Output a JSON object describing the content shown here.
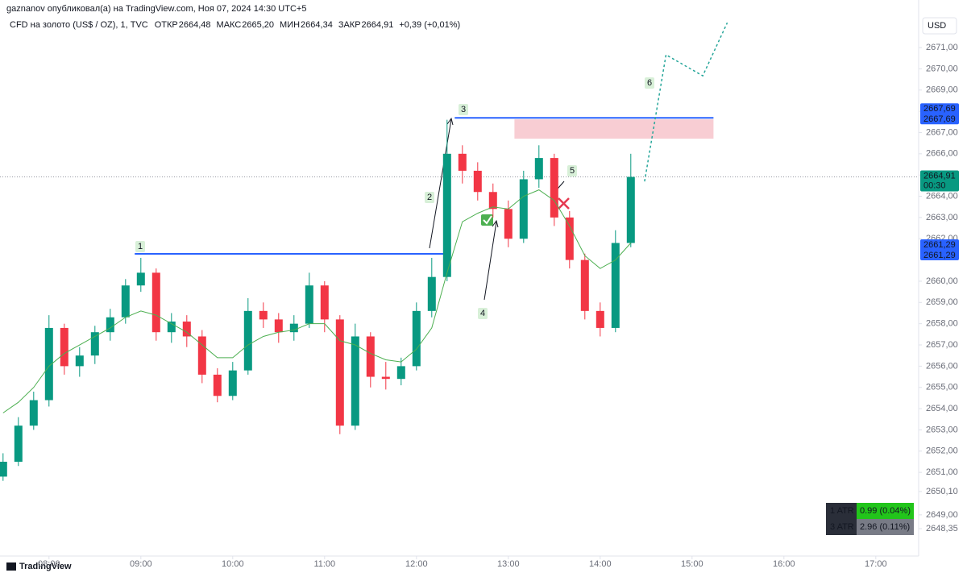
{
  "header": {
    "byline": "gaznanov опубликовал(а) на TradingView.com, Ноя 07, 2024 14:30 UTC+5",
    "symbol": "CFD на золото (US$ / OZ), 1, TVC",
    "ohlc": [
      {
        "name": "ОТКР",
        "value": 2664.48,
        "label": "2664,48"
      },
      {
        "name": "МАКС",
        "value": 2665.2,
        "label": "2665,20"
      },
      {
        "name": "МИН",
        "value": 2664.34,
        "label": "2664,34"
      },
      {
        "name": "ЗАКР",
        "value": 2664.91,
        "label": "2664,91"
      }
    ],
    "change": "+0,39 (+0,01%)"
  },
  "chart_data": {
    "type": "candlestick",
    "currency": "USD",
    "x": [
      450,
      460,
      470,
      480,
      490,
      500,
      510,
      520,
      530,
      540,
      550,
      560,
      570,
      580,
      590,
      600,
      610,
      620,
      630,
      640,
      650,
      660,
      670,
      680,
      690,
      700,
      710,
      720,
      730,
      740,
      750,
      760,
      770,
      780,
      790,
      800,
      810,
      820,
      830,
      840,
      850,
      860
    ],
    "open": [
      2650.8,
      2651.5,
      2653.2,
      2654.4,
      2657.8,
      2656.0,
      2656.5,
      2657.6,
      2658.3,
      2659.8,
      2660.4,
      2657.6,
      2658.1,
      2657.4,
      2655.6,
      2654.6,
      2655.8,
      2658.6,
      2658.2,
      2657.6,
      2658.0,
      2659.8,
      2658.2,
      2653.2,
      2657.4,
      2655.5,
      2655.4,
      2656.0,
      2658.6,
      2660.2,
      2666.0,
      2665.2,
      2664.2,
      2663.4,
      2662.0,
      2664.8,
      2665.8,
      2663.0,
      2661.0,
      2658.6,
      2657.8,
      2661.8
    ],
    "high": [
      2651.9,
      2653.6,
      2654.8,
      2658.4,
      2658.0,
      2656.9,
      2657.9,
      2658.7,
      2660.1,
      2661.1,
      2660.6,
      2658.5,
      2658.4,
      2657.7,
      2655.9,
      2656.2,
      2659.2,
      2659.0,
      2658.5,
      2658.4,
      2660.4,
      2660.0,
      2658.4,
      2658.0,
      2657.6,
      2656.2,
      2656.4,
      2659.0,
      2661.1,
      2667.6,
      2666.4,
      2665.6,
      2664.6,
      2663.8,
      2665.2,
      2666.4,
      2666.0,
      2663.3,
      2661.3,
      2659.0,
      2662.4,
      2666.0
    ],
    "low": [
      2650.6,
      2651.3,
      2653.0,
      2654.1,
      2655.6,
      2655.5,
      2656.1,
      2657.2,
      2658.0,
      2659.5,
      2657.2,
      2657.1,
      2656.9,
      2655.2,
      2654.3,
      2654.4,
      2655.6,
      2657.8,
      2657.1,
      2657.2,
      2657.8,
      2657.6,
      2652.8,
      2653.0,
      2655.0,
      2654.9,
      2655.1,
      2655.8,
      2658.3,
      2660.0,
      2664.6,
      2663.8,
      2663.0,
      2661.6,
      2661.8,
      2664.4,
      2662.6,
      2660.6,
      2658.2,
      2657.4,
      2657.6,
      2661.6
    ],
    "close": [
      2651.5,
      2653.2,
      2654.4,
      2657.8,
      2656.0,
      2656.5,
      2657.6,
      2658.3,
      2659.8,
      2660.4,
      2657.6,
      2658.1,
      2657.4,
      2655.6,
      2654.6,
      2655.8,
      2658.6,
      2658.2,
      2657.6,
      2658.0,
      2659.8,
      2658.2,
      2653.2,
      2657.4,
      2655.5,
      2655.4,
      2656.0,
      2658.6,
      2660.2,
      2666.0,
      2665.2,
      2664.2,
      2663.4,
      2662.0,
      2664.8,
      2665.8,
      2663.0,
      2661.0,
      2658.6,
      2657.8,
      2661.8,
      2664.91
    ],
    "up_color": "#089981",
    "down_color": "#f23645",
    "ma": {
      "color": "#4caf50",
      "values": [
        2653.8,
        2654.3,
        2655.0,
        2656.0,
        2656.6,
        2657.0,
        2657.4,
        2657.8,
        2658.3,
        2658.6,
        2658.4,
        2658.0,
        2657.6,
        2657.0,
        2656.4,
        2656.4,
        2657.0,
        2657.4,
        2657.6,
        2657.7,
        2658.0,
        2658.0,
        2657.2,
        2657.0,
        2656.6,
        2656.3,
        2656.2,
        2656.8,
        2657.8,
        2660.4,
        2662.8,
        2663.2,
        2663.5,
        2663.4,
        2664.0,
        2664.3,
        2663.8,
        2662.6,
        2661.2,
        2660.6,
        2661.0,
        2661.8
      ]
    },
    "xlim": [
      448,
      1048
    ],
    "xticks": [
      {
        "value": 480,
        "label": "08:00"
      },
      {
        "value": 540,
        "label": "09:00"
      },
      {
        "value": 600,
        "label": "10:00"
      },
      {
        "value": 660,
        "label": "11:00"
      },
      {
        "value": 720,
        "label": "12:00"
      },
      {
        "value": 780,
        "label": "13:00"
      },
      {
        "value": 840,
        "label": "14:00"
      },
      {
        "value": 900,
        "label": "15:00"
      },
      {
        "value": 960,
        "label": "16:00"
      },
      {
        "value": 1020,
        "label": "17:00"
      }
    ],
    "ylim": [
      2647.06,
      2673.24
    ],
    "yticks": [
      {
        "value": 2671,
        "label": "2671,00"
      },
      {
        "value": 2670,
        "label": "2670,00"
      },
      {
        "value": 2669,
        "label": "2669,00"
      },
      {
        "value": 2668,
        "label": "2668,00"
      },
      {
        "value": 2667,
        "label": "2667,00"
      },
      {
        "value": 2666,
        "label": "2666,00"
      },
      {
        "value": 2665,
        "label": "2665,00"
      },
      {
        "value": 2664,
        "label": "2664,00"
      },
      {
        "value": 2663,
        "label": "2663,00"
      },
      {
        "value": 2662,
        "label": "2662,00"
      },
      {
        "value": 2660,
        "label": "2660,00"
      },
      {
        "value": 2659,
        "label": "2659,00"
      },
      {
        "value": 2658,
        "label": "2658,00"
      },
      {
        "value": 2657,
        "label": "2657,00"
      },
      {
        "value": 2656,
        "label": "2656,00"
      },
      {
        "value": 2655,
        "label": "2655,00"
      },
      {
        "value": 2654,
        "label": "2654,00"
      },
      {
        "value": 2653,
        "label": "2653,00"
      },
      {
        "value": 2652,
        "label": "2652,00"
      },
      {
        "value": 2651,
        "label": "2651,00"
      },
      {
        "value": 2650.1,
        "label": "2650,10"
      },
      {
        "value": 2649,
        "label": "2649,00"
      },
      {
        "value": 2648.35,
        "label": "2648,35"
      }
    ],
    "levels": [
      {
        "value": 2661.29,
        "label": "2661,29",
        "from": 536,
        "to": 741,
        "color": "#2962ff"
      },
      {
        "value": 2667.69,
        "label": "2667,69",
        "from": 745,
        "to": 914,
        "color": "#2962ff"
      }
    ],
    "zone": {
      "from": 784,
      "to": 914,
      "low": 2666.71,
      "high": 2667.62,
      "color": "#f8cdd3"
    },
    "projection": {
      "x": [
        869,
        883,
        907,
        923
      ],
      "y": [
        2664.7,
        2670.66,
        2669.67,
        2672.17
      ],
      "color": "#26a69a"
    },
    "last_price": {
      "value": 2664.91,
      "label": "2664,91",
      "countdown": "00:30",
      "color": "#089981"
    },
    "annotations": [
      "1",
      "2",
      "3",
      "4",
      "5",
      "6"
    ]
  },
  "atr": [
    {
      "name": "1 ATR",
      "value": "0.99 (0.04%)",
      "color": "#22c51b"
    },
    {
      "name": "3 ATR",
      "value": "2.96 (0.11%)",
      "color": "#787b86"
    }
  ],
  "footer": {
    "brand": "TradingView"
  }
}
